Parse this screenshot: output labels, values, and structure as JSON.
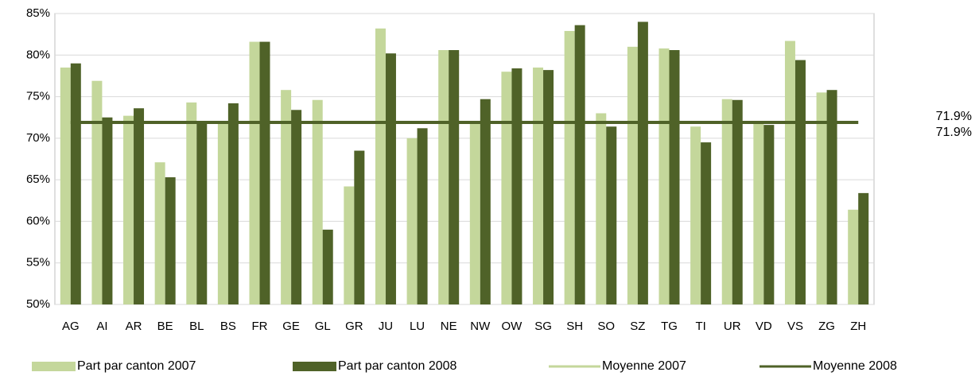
{
  "chart_data": {
    "type": "bar",
    "categories": [
      "AG",
      "AI",
      "AR",
      "BE",
      "BL",
      "BS",
      "FR",
      "GE",
      "GL",
      "GR",
      "JU",
      "LU",
      "NE",
      "NW",
      "OW",
      "SG",
      "SH",
      "SO",
      "SZ",
      "TG",
      "TI",
      "UR",
      "VD",
      "VS",
      "ZG",
      "ZH"
    ],
    "series": [
      {
        "name": "Part par canton 2007",
        "color": "#c4d79b",
        "values": [
          78.5,
          76.9,
          72.7,
          67.1,
          74.3,
          72.0,
          81.6,
          75.8,
          74.6,
          64.2,
          83.2,
          70.0,
          80.6,
          72.0,
          78.0,
          78.5,
          82.9,
          73.0,
          81.0,
          80.8,
          71.4,
          74.7,
          72.0,
          81.7,
          75.5,
          61.4
        ]
      },
      {
        "name": "Part par canton 2008",
        "color": "#4f6228",
        "values": [
          79.0,
          72.5,
          73.6,
          65.3,
          72.0,
          74.2,
          81.6,
          73.4,
          59.0,
          68.5,
          80.2,
          71.2,
          80.6,
          74.7,
          78.4,
          78.2,
          83.6,
          71.4,
          84.0,
          80.6,
          69.5,
          74.6,
          71.6,
          79.4,
          75.8,
          63.4
        ]
      }
    ],
    "averages": [
      {
        "name": "Moyenne 2007",
        "color": "#c4d79b",
        "value": 71.9,
        "value_label": "71.9%"
      },
      {
        "name": "Moyenne 2008",
        "color": "#4f6228",
        "value": 71.9,
        "value_label": "71.9%"
      }
    ],
    "ylim": [
      50,
      85
    ],
    "yticks": [
      {
        "value": 50,
        "label": "50%"
      },
      {
        "value": 55,
        "label": "55%"
      },
      {
        "value": 60,
        "label": "60%"
      },
      {
        "value": 65,
        "label": "65%"
      },
      {
        "value": 70,
        "label": "70%"
      },
      {
        "value": 75,
        "label": "75%"
      },
      {
        "value": 80,
        "label": "80%"
      },
      {
        "value": 85,
        "label": "85%"
      }
    ],
    "grid": true,
    "legend": "bottom"
  }
}
